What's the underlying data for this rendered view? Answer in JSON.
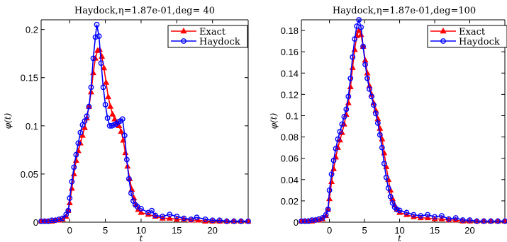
{
  "colors": {
    "exact": "#ff0000",
    "haydock": "#0000ff",
    "axis": "#000000"
  },
  "chart_data": [
    {
      "type": "line",
      "title": "Haydock,η=1.87e-01,deg= 40",
      "xlabel": "t",
      "ylabel": "φ(t)",
      "xlim": [
        -4,
        25
      ],
      "ylim": [
        0,
        0.21
      ],
      "xticks": [
        0,
        5,
        10,
        15,
        20
      ],
      "xtick_labels": [
        "0",
        "5",
        "10",
        "15",
        "20"
      ],
      "yticks": [
        0,
        0.05,
        0.1,
        0.15,
        0.2
      ],
      "ytick_labels": [
        "0",
        "0.05",
        "0.1",
        "0.15",
        "0.2"
      ],
      "legend": {
        "position": "top-right",
        "entries": [
          "Exact",
          "Haydock"
        ]
      },
      "series": [
        {
          "name": "Exact",
          "color": "#ff0000",
          "marker": "triangle",
          "points": [
            [
              -4,
              0.001
            ],
            [
              -3.5,
              0.001
            ],
            [
              -3,
              0.001
            ],
            [
              -2.5,
              0.001
            ],
            [
              -2,
              0.002
            ],
            [
              -1.5,
              0.002
            ],
            [
              -1,
              0.003
            ],
            [
              -0.5,
              0.006
            ],
            [
              -0.2,
              0.012
            ],
            [
              0,
              0.02
            ],
            [
              0.3,
              0.035
            ],
            [
              0.6,
              0.05
            ],
            [
              0.9,
              0.064
            ],
            [
              1.2,
              0.074
            ],
            [
              1.5,
              0.082
            ],
            [
              1.8,
              0.09
            ],
            [
              2.1,
              0.098
            ],
            [
              2.4,
              0.108
            ],
            [
              2.7,
              0.12
            ],
            [
              3.0,
              0.135
            ],
            [
              3.3,
              0.155
            ],
            [
              3.6,
              0.17
            ],
            [
              3.9,
              0.178
            ],
            [
              4.2,
              0.179
            ],
            [
              4.5,
              0.172
            ],
            [
              4.8,
              0.16
            ],
            [
              5.1,
              0.145
            ],
            [
              5.4,
              0.13
            ],
            [
              5.7,
              0.12
            ],
            [
              6.0,
              0.112
            ],
            [
              6.3,
              0.107
            ],
            [
              6.6,
              0.103
            ],
            [
              6.9,
              0.1
            ],
            [
              7.2,
              0.094
            ],
            [
              7.5,
              0.085
            ],
            [
              7.8,
              0.072
            ],
            [
              8.1,
              0.058
            ],
            [
              8.4,
              0.045
            ],
            [
              8.7,
              0.034
            ],
            [
              9.0,
              0.025
            ],
            [
              9.3,
              0.018
            ],
            [
              9.6,
              0.013
            ],
            [
              10,
              0.01
            ],
            [
              11,
              0.008
            ],
            [
              12,
              0.006
            ],
            [
              13,
              0.004
            ],
            [
              14,
              0.004
            ],
            [
              15,
              0.003
            ],
            [
              16,
              0.003
            ],
            [
              17,
              0.002
            ],
            [
              18,
              0.002
            ],
            [
              19,
              0.001
            ],
            [
              20,
              0.001
            ],
            [
              21,
              0.001
            ],
            [
              22,
              0.001
            ],
            [
              23,
              0.001
            ],
            [
              24,
              0.001
            ],
            [
              25,
              0.001
            ]
          ]
        },
        {
          "name": "Haydock",
          "color": "#0000ff",
          "marker": "circle",
          "points": [
            [
              -4,
              0.001
            ],
            [
              -3.5,
              0.001
            ],
            [
              -3,
              0.001
            ],
            [
              -2.5,
              0.002
            ],
            [
              -2,
              0.002
            ],
            [
              -1.5,
              0.003
            ],
            [
              -1,
              0.004
            ],
            [
              -0.5,
              0.008
            ],
            [
              -0.2,
              0.012
            ],
            [
              0,
              0.025
            ],
            [
              0.3,
              0.042
            ],
            [
              0.6,
              0.057
            ],
            [
              0.9,
              0.07
            ],
            [
              1.2,
              0.082
            ],
            [
              1.5,
              0.093
            ],
            [
              1.8,
              0.101
            ],
            [
              2.1,
              0.105
            ],
            [
              2.4,
              0.11
            ],
            [
              2.7,
              0.12
            ],
            [
              3.0,
              0.14
            ],
            [
              3.3,
              0.17
            ],
            [
              3.6,
              0.192
            ],
            [
              3.8,
              0.205
            ],
            [
              4.1,
              0.193
            ],
            [
              4.4,
              0.165
            ],
            [
              4.7,
              0.14
            ],
            [
              5.0,
              0.122
            ],
            [
              5.3,
              0.108
            ],
            [
              5.6,
              0.1
            ],
            [
              5.9,
              0.1
            ],
            [
              6.2,
              0.101
            ],
            [
              6.5,
              0.102
            ],
            [
              6.8,
              0.104
            ],
            [
              7.1,
              0.105
            ],
            [
              7.4,
              0.107
            ],
            [
              7.7,
              0.09
            ],
            [
              8.0,
              0.065
            ],
            [
              8.3,
              0.045
            ],
            [
              8.6,
              0.03
            ],
            [
              8.9,
              0.022
            ],
            [
              9.2,
              0.018
            ],
            [
              9.5,
              0.016
            ],
            [
              10,
              0.014
            ],
            [
              11,
              0.01
            ],
            [
              11.5,
              0.012
            ],
            [
              12,
              0.007
            ],
            [
              13,
              0.006
            ],
            [
              14,
              0.008
            ],
            [
              15,
              0.006
            ],
            [
              16,
              0.004
            ],
            [
              17,
              0.003
            ],
            [
              17.8,
              0.005
            ],
            [
              19,
              0.003
            ],
            [
              20,
              0.002
            ],
            [
              21,
              0.002
            ],
            [
              22,
              0.001
            ],
            [
              23,
              0.001
            ],
            [
              24,
              0.001
            ],
            [
              25,
              0.001
            ]
          ]
        }
      ]
    },
    {
      "type": "line",
      "title": "Haydock,η=1.87e-01,deg=100",
      "xlabel": "t",
      "ylabel": "φ(t)",
      "xlim": [
        -4,
        25
      ],
      "ylim": [
        0,
        0.19
      ],
      "xticks": [
        0,
        5,
        10,
        15,
        20
      ],
      "xtick_labels": [
        "0",
        "5",
        "10",
        "15",
        "20"
      ],
      "yticks": [
        0,
        0.02,
        0.04,
        0.06,
        0.08,
        0.1,
        0.12,
        0.14,
        0.16,
        0.18
      ],
      "ytick_labels": [
        "0",
        "0.02",
        "0.04",
        "0.06",
        "0.08",
        "0.1",
        "0.12",
        "0.14",
        "0.16",
        "0.18"
      ],
      "legend": {
        "position": "top-right",
        "entries": [
          "Exact",
          "Haydock"
        ]
      },
      "series": [
        {
          "name": "Exact",
          "color": "#ff0000",
          "marker": "triangle",
          "points": [
            [
              -4,
              0.001
            ],
            [
              -3.5,
              0.001
            ],
            [
              -3,
              0.001
            ],
            [
              -2.5,
              0.001
            ],
            [
              -2,
              0.002
            ],
            [
              -1.5,
              0.002
            ],
            [
              -1,
              0.003
            ],
            [
              -0.5,
              0.006
            ],
            [
              -0.2,
              0.012
            ],
            [
              0,
              0.022
            ],
            [
              0.3,
              0.038
            ],
            [
              0.6,
              0.05
            ],
            [
              0.9,
              0.061
            ],
            [
              1.2,
              0.07
            ],
            [
              1.5,
              0.077
            ],
            [
              1.8,
              0.084
            ],
            [
              2.1,
              0.092
            ],
            [
              2.4,
              0.101
            ],
            [
              2.7,
              0.112
            ],
            [
              3.0,
              0.127
            ],
            [
              3.3,
              0.145
            ],
            [
              3.6,
              0.162
            ],
            [
              3.9,
              0.175
            ],
            [
              4.2,
              0.18
            ],
            [
              4.5,
              0.176
            ],
            [
              4.8,
              0.165
            ],
            [
              5.1,
              0.152
            ],
            [
              5.4,
              0.14
            ],
            [
              5.7,
              0.128
            ],
            [
              6.0,
              0.12
            ],
            [
              6.3,
              0.112
            ],
            [
              6.6,
              0.105
            ],
            [
              6.9,
              0.097
            ],
            [
              7.2,
              0.088
            ],
            [
              7.5,
              0.078
            ],
            [
              7.8,
              0.065
            ],
            [
              8.1,
              0.052
            ],
            [
              8.4,
              0.04
            ],
            [
              8.7,
              0.03
            ],
            [
              9.0,
              0.022
            ],
            [
              9.3,
              0.016
            ],
            [
              9.6,
              0.012
            ],
            [
              10,
              0.009
            ],
            [
              11,
              0.007
            ],
            [
              12,
              0.005
            ],
            [
              13,
              0.004
            ],
            [
              14,
              0.004
            ],
            [
              15,
              0.003
            ],
            [
              16,
              0.003
            ],
            [
              17,
              0.002
            ],
            [
              18,
              0.002
            ],
            [
              19,
              0.001
            ],
            [
              20,
              0.001
            ],
            [
              21,
              0.001
            ],
            [
              22,
              0.001
            ],
            [
              23,
              0.001
            ],
            [
              24,
              0.001
            ],
            [
              25,
              0.001
            ]
          ]
        },
        {
          "name": "Haydock",
          "color": "#0000ff",
          "marker": "circle",
          "points": [
            [
              -4,
              0.001
            ],
            [
              -3.5,
              0.001
            ],
            [
              -3,
              0.001
            ],
            [
              -2.5,
              0.002
            ],
            [
              -2,
              0.002
            ],
            [
              -1.5,
              0.003
            ],
            [
              -1,
              0.004
            ],
            [
              -0.5,
              0.007
            ],
            [
              -0.2,
              0.012
            ],
            [
              0,
              0.03
            ],
            [
              0.3,
              0.045
            ],
            [
              0.6,
              0.058
            ],
            [
              0.9,
              0.069
            ],
            [
              1.2,
              0.078
            ],
            [
              1.5,
              0.085
            ],
            [
              1.8,
              0.092
            ],
            [
              2.1,
              0.099
            ],
            [
              2.4,
              0.106
            ],
            [
              2.7,
              0.118
            ],
            [
              3.0,
              0.135
            ],
            [
              3.3,
              0.155
            ],
            [
              3.6,
              0.172
            ],
            [
              3.9,
              0.184
            ],
            [
              4.2,
              0.19
            ],
            [
              4.5,
              0.183
            ],
            [
              4.8,
              0.165
            ],
            [
              5.1,
              0.148
            ],
            [
              5.4,
              0.135
            ],
            [
              5.7,
              0.125
            ],
            [
              6.0,
              0.118
            ],
            [
              6.3,
              0.11
            ],
            [
              6.6,
              0.102
            ],
            [
              6.9,
              0.093
            ],
            [
              7.2,
              0.082
            ],
            [
              7.5,
              0.07
            ],
            [
              7.8,
              0.055
            ],
            [
              8.1,
              0.042
            ],
            [
              8.4,
              0.032
            ],
            [
              8.7,
              0.024
            ],
            [
              9.0,
              0.018
            ],
            [
              9.3,
              0.014
            ],
            [
              9.6,
              0.012
            ],
            [
              10,
              0.011
            ],
            [
              11,
              0.009
            ],
            [
              12,
              0.007
            ],
            [
              13,
              0.006
            ],
            [
              14,
              0.007
            ],
            [
              15,
              0.005
            ],
            [
              16,
              0.006
            ],
            [
              17,
              0.003
            ],
            [
              18,
              0.004
            ],
            [
              19,
              0.002
            ],
            [
              20,
              0.002
            ],
            [
              21,
              0.001
            ],
            [
              22,
              0.001
            ],
            [
              23,
              0.001
            ],
            [
              24,
              0.001
            ],
            [
              25,
              0.001
            ]
          ]
        }
      ]
    }
  ]
}
